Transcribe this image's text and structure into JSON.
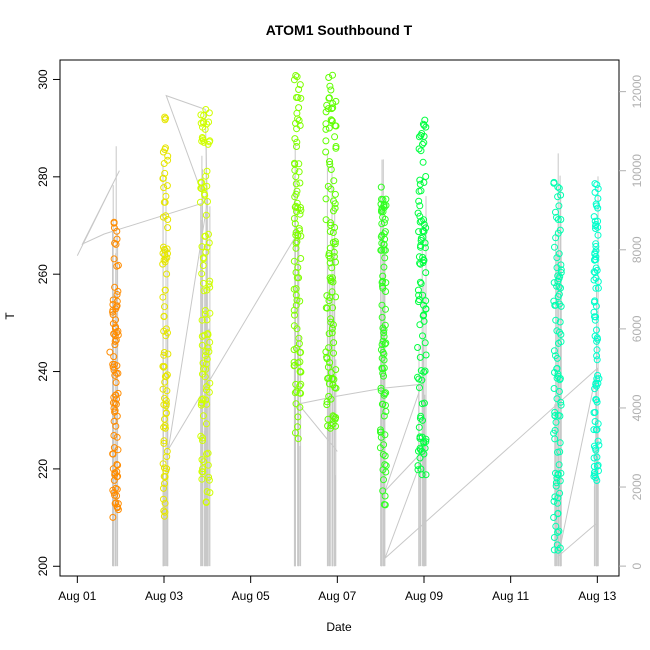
{
  "chart_data": {
    "type": "scatter",
    "title": "ATOM1 Southbound T",
    "xlabel": "Date",
    "ylabel": "T",
    "x_ticks": [
      "Aug 01",
      "Aug 03",
      "Aug 05",
      "Aug 07",
      "Aug 09",
      "Aug 11",
      "Aug 13"
    ],
    "x_tick_days": [
      1,
      3,
      5,
      7,
      9,
      11,
      13
    ],
    "xlim_days": [
      0.6,
      13.5
    ],
    "ylim": [
      198,
      304
    ],
    "y_ticks": [
      200,
      220,
      240,
      260,
      280,
      300
    ],
    "y2lim": [
      -250,
      12800
    ],
    "y2_ticks": [
      0,
      2000,
      4000,
      6000,
      8000,
      10000,
      12000
    ],
    "y2_color": "#b0b0b0",
    "trace_color": "#c8c8c8",
    "secondary_trace": [
      [
        1.0,
        7850
      ],
      [
        1.97,
        10000
      ],
      [
        1.12,
        8150
      ],
      [
        1.62,
        8400
      ],
      [
        3.95,
        9200
      ],
      [
        3.05,
        11900
      ],
      [
        3.95,
        11550
      ],
      [
        4.0,
        9200
      ],
      [
        3.1,
        2950
      ],
      [
        6.1,
        8450
      ],
      [
        6.1,
        4100
      ],
      [
        7.0,
        2900
      ],
      [
        6.1,
        4100
      ],
      [
        7.0,
        4300
      ],
      [
        8.05,
        4500
      ],
      [
        8.95,
        4600
      ],
      [
        8.1,
        1900
      ],
      [
        9.05,
        3000
      ],
      [
        8.1,
        200
      ],
      [
        13.0,
        5000
      ],
      [
        12.1,
        250
      ],
      [
        13.0,
        1100
      ]
    ],
    "bursts": [
      {
        "day": 1.88,
        "width": 0.14,
        "ymin": 210,
        "ymax": 271,
        "color": "#ff8c00",
        "seed": 11
      },
      {
        "day": 1.76,
        "width": 0.03,
        "ymin": 244,
        "ymax": 244,
        "color": "#ff8c00",
        "seed": 3,
        "count": 1
      },
      {
        "day": 3.03,
        "width": 0.12,
        "ymin": 210,
        "ymax": 296,
        "color": "#e6e600",
        "seed": 21
      },
      {
        "day": 3.95,
        "width": 0.22,
        "ymin": 212,
        "ymax": 294,
        "color": "#d0ff00",
        "seed": 31
      },
      {
        "day": 6.08,
        "width": 0.16,
        "ymin": 226,
        "ymax": 301,
        "color": "#80ff00",
        "seed": 41
      },
      {
        "day": 6.85,
        "width": 0.24,
        "ymin": 228,
        "ymax": 301,
        "color": "#60ff00",
        "seed": 51
      },
      {
        "day": 8.06,
        "width": 0.14,
        "ymin": 212,
        "ymax": 279,
        "color": "#30ff20",
        "seed": 61
      },
      {
        "day": 8.95,
        "width": 0.2,
        "ymin": 218,
        "ymax": 293,
        "color": "#00ff40",
        "seed": 71
      },
      {
        "day": 12.08,
        "width": 0.18,
        "ymin": 203,
        "ymax": 279,
        "color": "#00ffb0",
        "seed": 81
      },
      {
        "day": 12.98,
        "width": 0.12,
        "ymin": 217,
        "ymax": 280,
        "color": "#00ffcc",
        "seed": 91
      }
    ],
    "grid": false,
    "legend": "none"
  }
}
